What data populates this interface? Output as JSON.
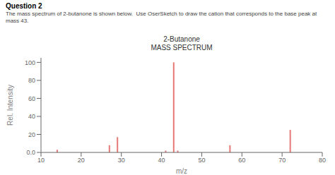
{
  "chart_data": {
    "type": "bar",
    "title": "2-Butanone",
    "subtitle": "MASS SPECTRUM",
    "annotations": [
      "Question 2",
      "The mass spectrum of 2-butanone is shown below.  Use OserSketch to draw the cation that corresponds to the base peak at\nmass 43."
    ],
    "x_label": "m/z",
    "y_label": "Rel. Intensity",
    "x": [
      14,
      27,
      29,
      41,
      43,
      44,
      57,
      72
    ],
    "values": [
      3,
      8,
      17,
      2,
      100,
      2,
      8,
      25
    ],
    "color": "#e87878",
    "xlim": [
      10,
      80
    ],
    "ylim": [
      0,
      105
    ],
    "xticks": [
      10,
      20,
      30,
      40,
      50,
      60,
      70,
      80
    ],
    "yticks": [
      {
        "value": 0,
        "label": "0.0"
      },
      20,
      40,
      60,
      80,
      100
    ],
    "grid": false
  }
}
